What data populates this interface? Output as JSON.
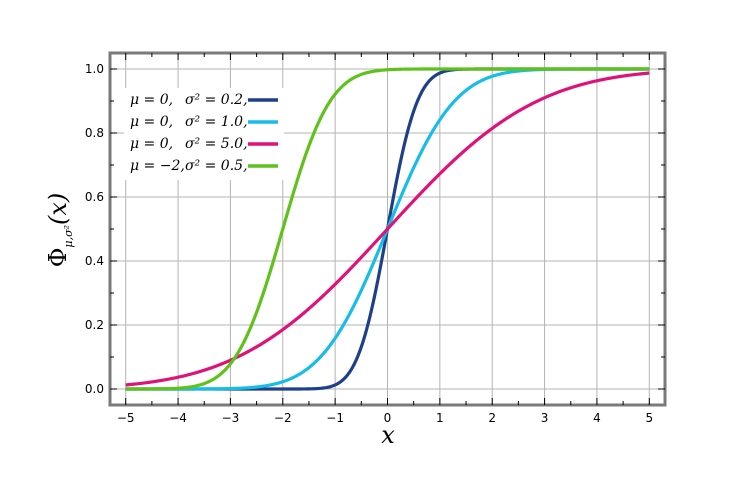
{
  "chart_data": {
    "type": "line",
    "title": "",
    "xlabel": "x",
    "ylabel": "Φμ,σ²(x)",
    "ylabel_main": "Φ",
    "ylabel_sub": "μ,σ²",
    "ylabel_arg": "(x)",
    "xlim": [
      -5.3,
      5.3
    ],
    "ylim": [
      -0.05,
      1.05
    ],
    "x_ticks": [
      -5,
      -4,
      -3,
      -2,
      -1,
      0,
      1,
      2,
      3,
      4,
      5
    ],
    "x_tick_labels": [
      "−5",
      "−4",
      "−3",
      "−2",
      "−1",
      "0",
      "1",
      "2",
      "3",
      "4",
      "5"
    ],
    "y_ticks": [
      0.0,
      0.2,
      0.4,
      0.6,
      0.8,
      1.0
    ],
    "y_tick_labels": [
      "0.0",
      "0.2",
      "0.4",
      "0.6",
      "0.8",
      "1.0"
    ],
    "grid": true,
    "legend_position": "top-left",
    "series": [
      {
        "name": "μ = 0,   σ² = 0.2,",
        "mu_text": "μ = 0,",
        "sigma_text": "σ² = 0.2,",
        "mu": 0,
        "variance": 0.2,
        "color": "#1e3f8a"
      },
      {
        "name": "μ = 0,   σ² = 1.0,",
        "mu_text": "μ = 0,",
        "sigma_text": "σ² = 1.0,",
        "mu": 0,
        "variance": 1.0,
        "color": "#16bde8"
      },
      {
        "name": "μ = 0,   σ² = 5.0,",
        "mu_text": "μ = 0,",
        "sigma_text": "σ² = 5.0,",
        "mu": 0,
        "variance": 5.0,
        "color": "#e0127a"
      },
      {
        "name": "μ = −2,  σ² = 0.5,",
        "mu_text": "μ = −2,",
        "sigma_text": "σ² = 0.5,",
        "mu": -2,
        "variance": 0.5,
        "color": "#5ec21a"
      }
    ],
    "colors": {
      "frame": "#7a7a7a",
      "grid": "#b3b3b3",
      "plot_background": "#ffffff"
    }
  }
}
